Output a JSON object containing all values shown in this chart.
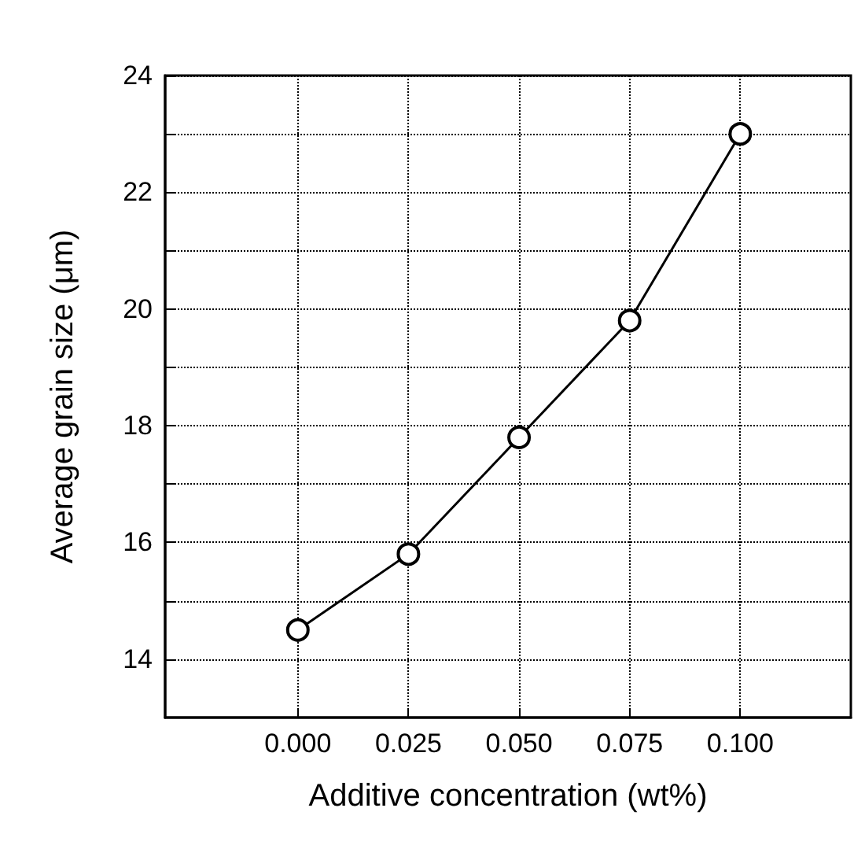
{
  "chart_data": {
    "type": "line",
    "xlabel": "Additive concentration (wt%)",
    "ylabel": "Average grain size (μm)",
    "x": [
      0,
      0.025,
      0.05,
      0.075,
      0.1
    ],
    "series": [
      {
        "color": "#000000",
        "values": [
          14.5,
          15.8,
          17.8,
          19.8,
          23.0
        ]
      }
    ],
    "xlim": [
      -0.03,
      0.125
    ],
    "xticks": [
      {
        "value": 0,
        "label": "0.000"
      },
      {
        "value": 0.025,
        "label": "0.025"
      },
      {
        "value": 0.05,
        "label": "0.050"
      },
      {
        "value": 0.075,
        "label": "0.075"
      },
      {
        "value": 0.1,
        "label": "0.100"
      }
    ],
    "ylim": [
      13,
      24
    ],
    "yticks": [
      14,
      {
        "value": 15,
        "label": null
      },
      16,
      {
        "value": 17,
        "label": null
      },
      18,
      {
        "value": 19,
        "label": null
      },
      20,
      {
        "value": 21,
        "label": null
      },
      22,
      {
        "value": 23,
        "label": null
      },
      24
    ],
    "grid": true,
    "marker": "circle",
    "line_style": "solid"
  }
}
